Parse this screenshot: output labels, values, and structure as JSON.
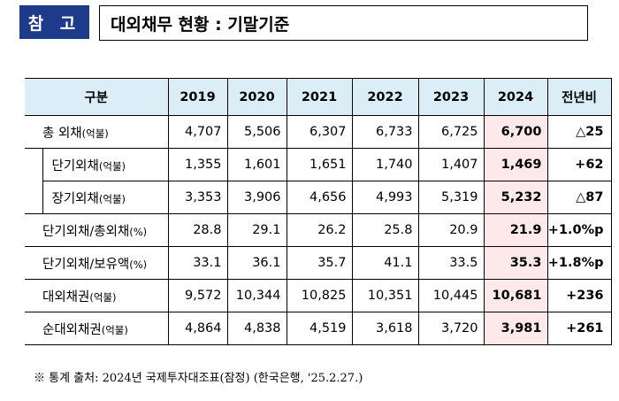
{
  "badge": "참 고",
  "title": "대외채무 현황 : 기말기준",
  "table": {
    "headers": [
      "구분",
      "2019",
      "2020",
      "2021",
      "2022",
      "2023",
      "2024",
      "전년비"
    ],
    "rows": [
      {
        "label": "총 외채",
        "unit": "(억불)",
        "indent": false,
        "values": [
          "4,707",
          "5,506",
          "6,307",
          "6,733",
          "6,725",
          "6,700"
        ],
        "change": "△25"
      },
      {
        "label": "단기외채",
        "unit": "(억불)",
        "indent": true,
        "values": [
          "1,355",
          "1,601",
          "1,651",
          "1,740",
          "1,407",
          "1,469"
        ],
        "change": "+62"
      },
      {
        "label": "장기외채",
        "unit": "(억불)",
        "indent": true,
        "values": [
          "3,353",
          "3,906",
          "4,656",
          "4,993",
          "5,319",
          "5,232"
        ],
        "change": "△87"
      },
      {
        "label": "단기외채/총외채",
        "unit": "(%)",
        "indent": false,
        "values": [
          "28.8",
          "29.1",
          "26.2",
          "25.8",
          "20.9",
          "21.9"
        ],
        "change": "+1.0%p"
      },
      {
        "label": "단기외채/보유액",
        "unit": "(%)",
        "indent": false,
        "values": [
          "33.1",
          "36.1",
          "35.7",
          "41.1",
          "33.5",
          "35.3"
        ],
        "change": "+1.8%p"
      },
      {
        "label": "대외채권",
        "unit": "(억불)",
        "indent": false,
        "values": [
          "9,572",
          "10,344",
          "10,825",
          "10,351",
          "10,445",
          "10,681"
        ],
        "change": "+236"
      },
      {
        "label": "순대외채권",
        "unit": "(억불)",
        "indent": false,
        "values": [
          "4,864",
          "4,838",
          "4,519",
          "3,618",
          "3,720",
          "3,981"
        ],
        "change": "+261"
      }
    ]
  },
  "note": "※ 통계 출처: 2024년 국제투자대조표(잠정) (한국은행, '25.2.27.)"
}
